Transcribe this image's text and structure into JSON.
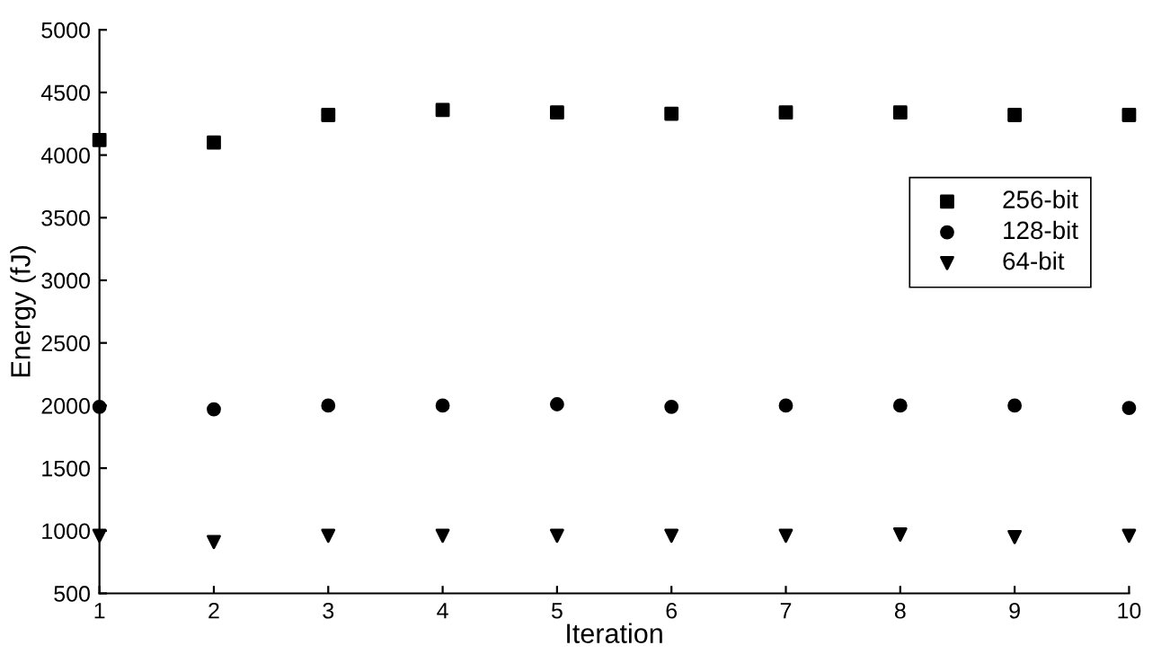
{
  "chart_data": {
    "type": "scatter",
    "xlabel": "Iteration",
    "ylabel": "Energy (fJ)",
    "x": [
      1,
      2,
      3,
      4,
      5,
      6,
      7,
      8,
      9,
      10
    ],
    "series": [
      {
        "name": "256-bit",
        "color": "#000000",
        "marker": "square",
        "values": [
          4120,
          4100,
          4320,
          4360,
          4340,
          4330,
          4340,
          4340,
          4320,
          4320
        ]
      },
      {
        "name": "128-bit",
        "color": "#000000",
        "marker": "circle",
        "values": [
          1990,
          1970,
          2000,
          2000,
          2010,
          1990,
          2000,
          2000,
          2000,
          1980
        ]
      },
      {
        "name": "64-bit",
        "color": "#000000",
        "marker": "triangle",
        "values": [
          960,
          910,
          960,
          960,
          960,
          960,
          960,
          970,
          950,
          960
        ]
      }
    ],
    "xlim": [
      1,
      10
    ],
    "xticks": [
      1,
      2,
      3,
      4,
      5,
      6,
      7,
      8,
      9,
      10
    ],
    "ylim": [
      500,
      5000
    ],
    "yticks": [
      500,
      1000,
      1500,
      2000,
      2500,
      3000,
      3500,
      4000,
      4500,
      5000
    ],
    "grid": false,
    "legend": "right"
  }
}
